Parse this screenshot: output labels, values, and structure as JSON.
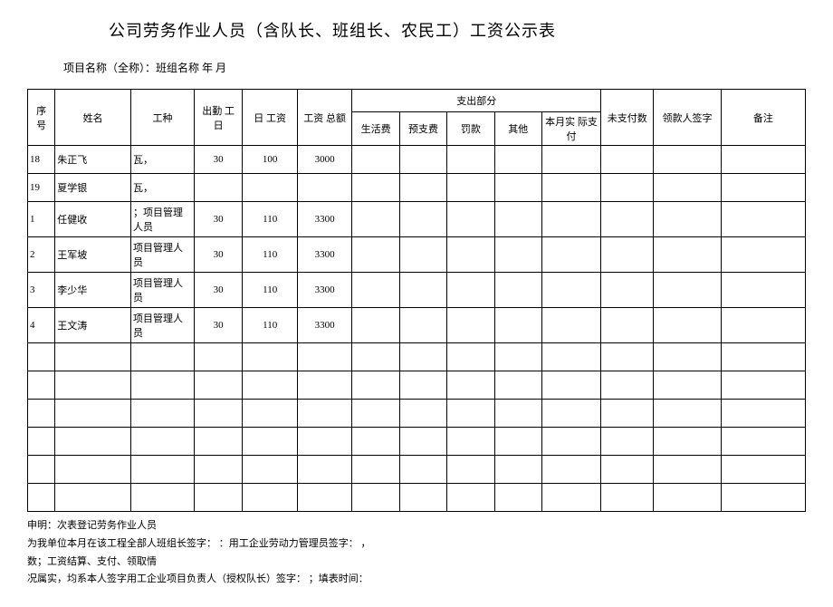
{
  "title": "公司劳务作业人员（含队长、班组长、农民工）工资公示表",
  "subtitle": "项目名称（全称）：班组名称 年 月",
  "headers": {
    "seq": "序 号",
    "name": "姓名",
    "job": "工种",
    "days": "出勤 工日",
    "daily": "日 工资",
    "total": "工资 总额",
    "expense_group": "支出部分",
    "living": "生活费",
    "advance": "预支费",
    "fine": "罚款",
    "other": "其他",
    "actual": "本月实 际支付",
    "unpaid": "未支付数",
    "sign": "领款人签字",
    "remark": "备注"
  },
  "rows": [
    {
      "seq": "18",
      "name": "朱正飞",
      "job": "瓦，",
      "days": "30",
      "daily": "100",
      "total": "3000",
      "living": "",
      "advance": "",
      "fine": "",
      "other": "",
      "actual": "",
      "unpaid": "",
      "sign": "",
      "remark": "",
      "tall": false
    },
    {
      "seq": "19",
      "name": "夏学银",
      "job": "瓦，",
      "days": "",
      "daily": "",
      "total": "",
      "living": "",
      "advance": "",
      "fine": "",
      "other": "",
      "actual": "",
      "unpaid": "",
      "sign": "",
      "remark": "",
      "tall": false
    },
    {
      "seq": "1",
      "name": "任健收",
      "job": "；项目管理人员",
      "days": "30",
      "daily": "110",
      "total": "3300",
      "living": "",
      "advance": "",
      "fine": "",
      "other": "",
      "actual": "",
      "unpaid": "",
      "sign": "",
      "remark": "",
      "tall": true
    },
    {
      "seq": "2",
      "name": "王军坡",
      "job": "项目管理人员",
      "days": "30",
      "daily": "110",
      "total": "3300",
      "living": "",
      "advance": "",
      "fine": "",
      "other": "",
      "actual": "",
      "unpaid": "",
      "sign": "",
      "remark": "",
      "tall": true
    },
    {
      "seq": "3",
      "name": "李少华",
      "job": "项目管理人员",
      "days": "30",
      "daily": "110",
      "total": "3300",
      "living": "",
      "advance": "",
      "fine": "",
      "other": "",
      "actual": "",
      "unpaid": "",
      "sign": "",
      "remark": "",
      "tall": true
    },
    {
      "seq": "4",
      "name": "王文涛",
      "job": "项目管理人员",
      "days": "30",
      "daily": "110",
      "total": "3300",
      "living": "",
      "advance": "",
      "fine": "",
      "other": "",
      "actual": "",
      "unpaid": "",
      "sign": "",
      "remark": "",
      "tall": true
    },
    {
      "seq": "",
      "name": "",
      "job": "",
      "days": "",
      "daily": "",
      "total": "",
      "living": "",
      "advance": "",
      "fine": "",
      "other": "",
      "actual": "",
      "unpaid": "",
      "sign": "",
      "remark": "",
      "tall": false
    },
    {
      "seq": "",
      "name": "",
      "job": "",
      "days": "",
      "daily": "",
      "total": "",
      "living": "",
      "advance": "",
      "fine": "",
      "other": "",
      "actual": "",
      "unpaid": "",
      "sign": "",
      "remark": "",
      "tall": false
    },
    {
      "seq": "",
      "name": "",
      "job": "",
      "days": "",
      "daily": "",
      "total": "",
      "living": "",
      "advance": "",
      "fine": "",
      "other": "",
      "actual": "",
      "unpaid": "",
      "sign": "",
      "remark": "",
      "tall": false
    },
    {
      "seq": "",
      "name": "",
      "job": "",
      "days": "",
      "daily": "",
      "total": "",
      "living": "",
      "advance": "",
      "fine": "",
      "other": "",
      "actual": "",
      "unpaid": "",
      "sign": "",
      "remark": "",
      "tall": false
    },
    {
      "seq": "",
      "name": "",
      "job": "",
      "days": "",
      "daily": "",
      "total": "",
      "living": "",
      "advance": "",
      "fine": "",
      "other": "",
      "actual": "",
      "unpaid": "",
      "sign": "",
      "remark": "",
      "tall": false
    },
    {
      "seq": "",
      "name": "",
      "job": "",
      "days": "",
      "daily": "",
      "total": "",
      "living": "",
      "advance": "",
      "fine": "",
      "other": "",
      "actual": "",
      "unpaid": "",
      "sign": "",
      "remark": "",
      "tall": false
    }
  ],
  "footer": [
    "申明：次表登记劳务作业人员",
    "为我单位本月在该工程全部人班组长签字：  ：用工企业劳动力管理员签字：  ，",
    "数；工资结算、支付、领取情",
    "况属实，均系本人签字用工企业项目负责人（授权队长）签字：  ；填表时间："
  ]
}
